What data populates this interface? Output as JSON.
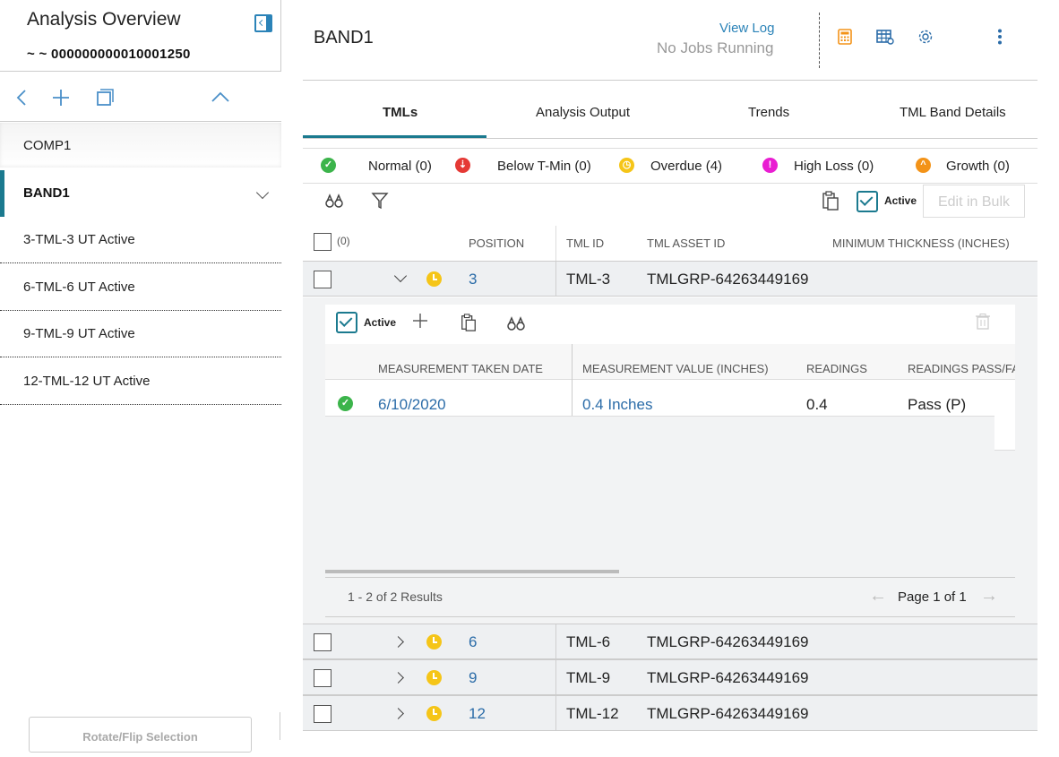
{
  "sidebar": {
    "title": "Analysis Overview",
    "asset_id": "~ ~ 000000000010001250",
    "items": [
      {
        "label": "COMP1"
      },
      {
        "label": "BAND1"
      },
      {
        "label": "3-TML-3 UT Active"
      },
      {
        "label": "6-TML-6 UT Active"
      },
      {
        "label": "9-TML-9 UT Active"
      },
      {
        "label": "12-TML-12 UT Active"
      }
    ],
    "rotate_label": "Rotate/Flip Selection"
  },
  "header": {
    "title": "BAND1",
    "view_log": "View Log",
    "jobs_status": "No Jobs Running"
  },
  "tabs": [
    {
      "label": "TMLs",
      "active": true
    },
    {
      "label": "Analysis Output",
      "active": false
    },
    {
      "label": "Trends",
      "active": false
    },
    {
      "label": "TML Band Details",
      "active": false
    }
  ],
  "status_filters": [
    {
      "label": "Normal (0)",
      "color": "#3cb44b"
    },
    {
      "label": "Below T-Min (0)",
      "color": "#e53935"
    },
    {
      "label": "Overdue (4)",
      "color": "#f5c518"
    },
    {
      "label": "High Loss (0)",
      "color": "#e91ed2"
    },
    {
      "label": "Growth (0)",
      "color": "#f39318"
    }
  ],
  "toolbar": {
    "active_label": "Active",
    "edit_bulk_label": "Edit in Bulk"
  },
  "grid": {
    "selected_count": "(0)",
    "columns": [
      "POSITION",
      "TML ID",
      "TML ASSET ID",
      "MINIMUM THICKNESS (INCHES)"
    ],
    "rows": [
      {
        "position": "3",
        "tml_id": "TML-3",
        "asset_id": "TMLGRP-64263449169",
        "expanded": true
      },
      {
        "position": "6",
        "tml_id": "TML-6",
        "asset_id": "TMLGRP-64263449169",
        "expanded": false
      },
      {
        "position": "9",
        "tml_id": "TML-9",
        "asset_id": "TMLGRP-64263449169",
        "expanded": false
      },
      {
        "position": "12",
        "tml_id": "TML-12",
        "asset_id": "TMLGRP-64263449169",
        "expanded": false
      }
    ]
  },
  "measurements": {
    "active_label": "Active",
    "columns": [
      "MEASUREMENT TAKEN DATE",
      "MEASUREMENT VALUE (INCHES)",
      "READINGS",
      "READINGS PASS/FA"
    ],
    "rows": [
      {
        "date": "6/10/2020",
        "value": "0.4 Inches",
        "readings": "0.4",
        "pass_fail": "Pass (P)"
      }
    ],
    "results": "1 - 2 of 2 Results",
    "page": "Page 1 of 1"
  },
  "colors": {
    "accent": "#1b7a8f",
    "link": "#2b6ca8"
  }
}
